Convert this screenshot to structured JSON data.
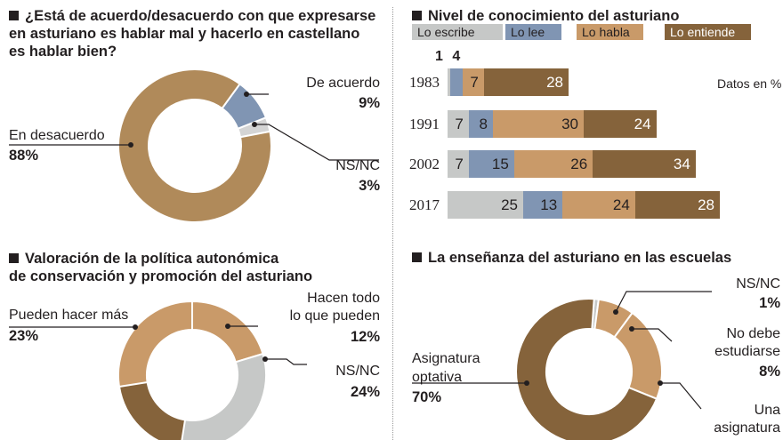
{
  "colors": {
    "escribe": "#c6c8c7",
    "lee": "#8095b3",
    "habla": "#c99a69",
    "entiende": "#85633b",
    "donut_brown": "#b08a5a",
    "ns_gray": "#d4d4d4",
    "leader": "#231f20"
  },
  "panels": {
    "p1": {
      "title_lines": [
        "¿Está de acuerdo/desacuerdo con que expresarse",
        "en asturiano es hablar mal y hacerlo en castellano",
        "es hablar bien?"
      ],
      "labels": [
        {
          "text": "De acuerdo",
          "pct": "9%"
        },
        {
          "text": "En desacuerdo",
          "pct": "88%"
        },
        {
          "text": "NS/NC",
          "pct": "3%"
        }
      ]
    },
    "p2": {
      "title": "Nivel de conocimiento del asturiano",
      "unit": "Datos en %"
    },
    "p3": {
      "title_lines": [
        "Valoración de la política autonómica",
        "de conservación y promoción del asturiano"
      ],
      "labels": [
        {
          "text": "Pueden hacer más",
          "pct": "23%"
        },
        {
          "text_lines": [
            "Hacen todo",
            "lo que pueden"
          ],
          "pct": "12%"
        },
        {
          "text": "NS/NC",
          "pct": "24%"
        }
      ]
    },
    "p4": {
      "title": "La enseñanza del asturiano en las escuelas",
      "labels": [
        {
          "text": "NS/NC",
          "pct": "1%"
        },
        {
          "text_lines": [
            "No debe",
            "estudiarse"
          ],
          "pct": "8%"
        },
        {
          "text_lines": [
            "Asignatura",
            "optativa"
          ],
          "pct": "70%"
        },
        {
          "text_lines": [
            "Una",
            "asignatura"
          ]
        }
      ]
    }
  },
  "chart_data": [
    {
      "type": "pie",
      "title": "¿Está de acuerdo/desacuerdo con que expresarse en asturiano es hablar mal y hacerlo en castellano es hablar bien?",
      "categories": [
        "De acuerdo",
        "NS/NC",
        "En desacuerdo"
      ],
      "values": [
        9,
        3,
        88
      ],
      "colors": [
        "#8095b3",
        "#d4d4d4",
        "#b08a5a"
      ]
    },
    {
      "type": "bar",
      "orientation": "horizontal-stacked",
      "title": "Nivel de conocimiento del asturiano",
      "categories": [
        "1983",
        "1991",
        "2002",
        "2017"
      ],
      "series": [
        {
          "name": "Lo escribe",
          "values": [
            1,
            7,
            7,
            25
          ],
          "color": "#c6c8c7"
        },
        {
          "name": "Lo lee",
          "values": [
            4,
            8,
            15,
            13
          ],
          "color": "#8095b3"
        },
        {
          "name": "Lo habla",
          "values": [
            7,
            30,
            26,
            24
          ],
          "color": "#c99a69"
        },
        {
          "name": "Lo entiende",
          "values": [
            28,
            24,
            34,
            28
          ],
          "color": "#85633b"
        }
      ],
      "unit": "Datos en %",
      "legend": "top"
    },
    {
      "type": "pie",
      "title": "Valoración de la política autonómica de conservación y promoción del asturiano",
      "categories": [
        "Hacen todo lo que pueden",
        "NS/NC",
        "Pueden hacer más"
      ],
      "values": [
        12,
        24,
        23
      ],
      "colors": [
        "#c99a69",
        "#c6c8c7",
        "#c99a69"
      ]
    },
    {
      "type": "pie",
      "title": "La enseñanza del asturiano en las escuelas",
      "categories": [
        "NS/NC",
        "No debe estudiarse",
        "Una asignatura",
        "Asignatura optativa"
      ],
      "values": [
        1,
        8,
        21,
        70
      ],
      "colors": [
        "#c6c8c7",
        "#c99a69",
        "#c99a69",
        "#85633b"
      ]
    }
  ]
}
